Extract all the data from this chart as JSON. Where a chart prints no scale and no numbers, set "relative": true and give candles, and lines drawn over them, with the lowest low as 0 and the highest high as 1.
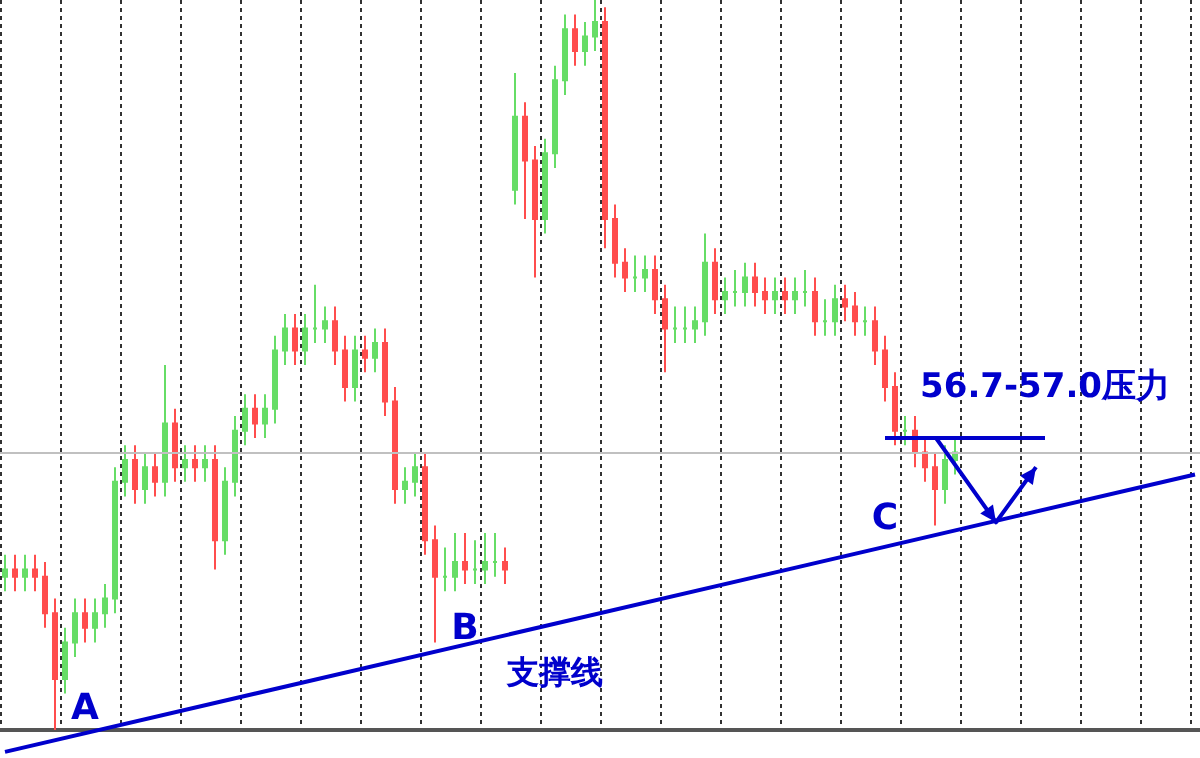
{
  "chart_data": {
    "type": "candlestick",
    "relative": true,
    "tick_labels": false,
    "grid": "x",
    "colors": [
      "#66dd66",
      "#ff4d4d",
      "#66dd66",
      "#ff4d4d",
      "#ff4d4d",
      "#ff4d4d",
      "#66dd66",
      "#66dd66",
      "#ff4d4d",
      "#66dd66",
      "#66dd66",
      "#66dd66",
      "#66dd66",
      "#ff4d4d",
      "#66dd66",
      "#ff4d4d",
      "#66dd66",
      "#ff4d4d",
      "#66dd66",
      "#ff4d4d",
      "#66dd66",
      "#ff4d4d",
      "#66dd66",
      "#66dd66",
      "#66dd66",
      "#ff4d4d",
      "#66dd66",
      "#66dd66",
      "#66dd66",
      "#ff4d4d",
      "#66dd66",
      "#66dd66",
      "#66dd66",
      "#ff4d4d",
      "#ff4d4d",
      "#66dd66",
      "#ff4d4d",
      "#66dd66",
      "#ff4d4d",
      "#ff4d4d",
      "#66dd66",
      "#66dd66",
      "#ff4d4d",
      "#ff4d4d",
      "#66dd66",
      "#66dd66",
      "#ff4d4d",
      "#66dd66",
      "#66dd66",
      "#66dd66",
      "#ff4d4d",
      "#66dd66",
      "#ff4d4d",
      "#ff4d4d",
      "#66dd66",
      "#66dd66",
      "#66dd66",
      "#ff4d4d",
      "#66dd66",
      "#66dd66",
      "#ff4d4d",
      "#ff4d4d",
      "#ff4d4d",
      "#66dd66",
      "#66dd66",
      "#ff4d4d",
      "#ff4d4d",
      "#66dd66",
      "#66dd66",
      "#66dd66",
      "#66dd66",
      "#ff4d4d",
      "#66dd66",
      "#66dd66",
      "#66dd66",
      "#ff4d4d",
      "#ff4d4d",
      "#66dd66",
      "#ff4d4d",
      "#66dd66",
      "#66dd66",
      "#ff4d4d",
      "#66dd66",
      "#66dd66",
      "#ff4d4d",
      "#ff4d4d",
      "#66dd66",
      "#ff4d4d",
      "#ff4d4d",
      "#ff4d4d",
      "#66dd66",
      "#ff4d4d",
      "#ff4d4d",
      "#ff4d4d",
      "#66dd66",
      "#66dd66",
      null,
      null,
      null,
      null,
      null,
      null,
      null,
      null,
      null,
      null,
      null,
      null,
      null,
      null,
      null,
      null,
      null,
      null,
      null,
      null,
      null,
      null,
      null,
      null
    ],
    "categories": [
      null,
      null,
      null,
      null,
      null,
      null,
      null,
      null,
      null,
      null,
      null,
      null,
      null,
      null,
      null,
      null,
      null,
      null,
      null,
      null,
      null,
      null,
      null,
      null,
      null,
      null,
      null,
      null,
      null,
      null,
      null,
      null,
      null,
      null,
      null,
      null,
      null,
      null,
      null,
      null,
      null,
      null,
      null,
      null,
      null,
      null,
      null,
      null,
      null,
      null,
      null,
      null,
      null,
      null,
      null,
      null,
      null,
      null,
      null,
      null,
      null,
      null,
      null,
      null,
      null,
      null,
      null,
      null,
      null,
      null,
      null,
      null,
      null,
      null,
      null,
      null,
      null,
      null,
      null,
      null,
      null,
      null,
      null,
      null,
      null,
      null,
      null,
      null,
      null,
      null,
      null,
      null,
      null,
      null,
      null,
      null,
      null,
      null,
      null,
      null,
      null,
      null,
      null,
      null,
      null,
      null,
      null,
      null,
      null,
      null,
      null,
      null,
      null,
      null,
      null,
      null,
      null,
      null,
      null,
      null
    ],
    "ohlc": [
      [
        0.21,
        0.24,
        0.19,
        0.22
      ],
      [
        0.22,
        0.24,
        0.19,
        0.21
      ],
      [
        0.21,
        0.24,
        0.19,
        0.22
      ],
      [
        0.22,
        0.24,
        0.19,
        0.21
      ],
      [
        0.21,
        0.23,
        0.14,
        0.16
      ],
      [
        0.16,
        0.18,
        0,
        0.07
      ],
      [
        0.07,
        0.14,
        0.05,
        0.12
      ],
      [
        0.12,
        0.18,
        0.1,
        0.16
      ],
      [
        0.16,
        0.18,
        0.12,
        0.14
      ],
      [
        0.14,
        0.18,
        0.12,
        0.16
      ],
      [
        0.16,
        0.2,
        0.14,
        0.18
      ],
      [
        0.18,
        0.36,
        0.16,
        0.34
      ],
      [
        0.34,
        0.39,
        0.32,
        0.37
      ],
      [
        0.37,
        0.39,
        0.31,
        0.33
      ],
      [
        0.33,
        0.38,
        0.31,
        0.36
      ],
      [
        0.36,
        0.38,
        0.32,
        0.34
      ],
      [
        0.34,
        0.5,
        0.32,
        0.42
      ],
      [
        0.42,
        0.44,
        0.34,
        0.36
      ],
      [
        0.36,
        0.39,
        0.34,
        0.37
      ],
      [
        0.37,
        0.39,
        0.34,
        0.36
      ],
      [
        0.36,
        0.39,
        0.34,
        0.37
      ],
      [
        0.37,
        0.39,
        0.22,
        0.26
      ],
      [
        0.26,
        0.36,
        0.24,
        0.34
      ],
      [
        0.34,
        0.43,
        0.32,
        0.41
      ],
      [
        0.41,
        0.46,
        0.39,
        0.44
      ],
      [
        0.44,
        0.46,
        0.4,
        0.42
      ],
      [
        0.42,
        0.46,
        0.4,
        0.44
      ],
      [
        0.44,
        0.54,
        0.42,
        0.52
      ],
      [
        0.52,
        0.57,
        0.5,
        0.55
      ],
      [
        0.55,
        0.57,
        0.5,
        0.52
      ],
      [
        0.52,
        0.57,
        0.5,
        0.55
      ],
      [
        0.55,
        0.61,
        0.53,
        0.55
      ],
      [
        0.55,
        0.58,
        0.53,
        0.56
      ],
      [
        0.56,
        0.58,
        0.5,
        0.52
      ],
      [
        0.52,
        0.54,
        0.45,
        0.47
      ],
      [
        0.47,
        0.54,
        0.45,
        0.52
      ],
      [
        0.52,
        0.54,
        0.49,
        0.51
      ],
      [
        0.51,
        0.55,
        0.49,
        0.53
      ],
      [
        0.53,
        0.55,
        0.43,
        0.45
      ],
      [
        0.45,
        0.47,
        0.31,
        0.33
      ],
      [
        0.33,
        0.36,
        0.31,
        0.34
      ],
      [
        0.34,
        0.38,
        0.32,
        0.36
      ],
      [
        0.36,
        0.38,
        0.24,
        0.26
      ],
      [
        0.26,
        0.28,
        0.12,
        0.21
      ],
      [
        0.21,
        0.25,
        0.19,
        0.21
      ],
      [
        0.21,
        0.27,
        0.19,
        0.23
      ],
      [
        0.23,
        0.27,
        0.2,
        0.22
      ],
      [
        0.22,
        0.26,
        0.2,
        0.22
      ],
      [
        0.22,
        0.27,
        0.2,
        0.23
      ],
      [
        0.23,
        0.27,
        0.21,
        0.23
      ],
      [
        0.23,
        0.25,
        0.2,
        0.22
      ],
      [
        0.74,
        0.9,
        0.72,
        0.84
      ],
      [
        0.84,
        0.86,
        0.7,
        0.78
      ],
      [
        0.78,
        0.8,
        0.62,
        0.7
      ],
      [
        0.7,
        0.81,
        0.68,
        0.79
      ],
      [
        0.79,
        0.91,
        0.77,
        0.89
      ],
      [
        0.89,
        0.98,
        0.87,
        0.96
      ],
      [
        0.96,
        0.98,
        0.91,
        0.93
      ],
      [
        0.93,
        0.97,
        0.91,
        0.95
      ],
      [
        0.95,
        1,
        0.93,
        0.97
      ],
      [
        0.97,
        0.99,
        0.66,
        0.7
      ],
      [
        0.7,
        0.72,
        0.62,
        0.64
      ],
      [
        0.64,
        0.66,
        0.6,
        0.62
      ],
      [
        0.62,
        0.65,
        0.6,
        0.62
      ],
      [
        0.62,
        0.65,
        0.6,
        0.63
      ],
      [
        0.63,
        0.65,
        0.57,
        0.59
      ],
      [
        0.59,
        0.61,
        0.49,
        0.55
      ],
      [
        0.55,
        0.58,
        0.53,
        0.55
      ],
      [
        0.55,
        0.58,
        0.53,
        0.55
      ],
      [
        0.55,
        0.58,
        0.53,
        0.56
      ],
      [
        0.56,
        0.68,
        0.54,
        0.64
      ],
      [
        0.64,
        0.66,
        0.57,
        0.59
      ],
      [
        0.59,
        0.62,
        0.57,
        0.6
      ],
      [
        0.6,
        0.63,
        0.58,
        0.6
      ],
      [
        0.6,
        0.64,
        0.58,
        0.62
      ],
      [
        0.62,
        0.64,
        0.58,
        0.6
      ],
      [
        0.6,
        0.62,
        0.57,
        0.59
      ],
      [
        0.59,
        0.62,
        0.57,
        0.6
      ],
      [
        0.6,
        0.62,
        0.57,
        0.59
      ],
      [
        0.59,
        0.62,
        0.57,
        0.6
      ],
      [
        0.6,
        0.63,
        0.58,
        0.6
      ],
      [
        0.6,
        0.62,
        0.54,
        0.56
      ],
      [
        0.56,
        0.59,
        0.54,
        0.56
      ],
      [
        0.56,
        0.61,
        0.54,
        0.59
      ],
      [
        0.59,
        0.61,
        0.56,
        0.58
      ],
      [
        0.58,
        0.6,
        0.54,
        0.56
      ],
      [
        0.56,
        0.58,
        0.54,
        0.56
      ],
      [
        0.56,
        0.58,
        0.5,
        0.52
      ],
      [
        0.52,
        0.54,
        0.45,
        0.47
      ],
      [
        0.47,
        0.49,
        0.39,
        0.41
      ],
      [
        0.41,
        0.43,
        0.39,
        0.41
      ],
      [
        0.41,
        0.43,
        0.36,
        0.38
      ],
      [
        0.38,
        0.4,
        0.34,
        0.36
      ],
      [
        0.36,
        0.38,
        0.28,
        0.33
      ],
      [
        0.33,
        0.39,
        0.31,
        0.37
      ],
      [
        0.37,
        0.4,
        0.35,
        0.38
      ],
      null,
      null,
      null,
      null,
      null,
      null,
      null,
      null,
      null,
      null,
      null,
      null,
      null,
      null,
      null,
      null,
      null,
      null,
      null,
      null,
      null,
      null,
      null,
      null
    ],
    "series": [
      {
        "type": "line",
        "color": "#0000cc",
        "values": [
          -0.03,
          null,
          null,
          null,
          null,
          null,
          null,
          null,
          null,
          null,
          null,
          null,
          null,
          null,
          null,
          null,
          null,
          null,
          null,
          null,
          null,
          null,
          null,
          null,
          null,
          null,
          null,
          null,
          null,
          null,
          null,
          null,
          null,
          null,
          null,
          null,
          null,
          null,
          null,
          null,
          null,
          null,
          null,
          null,
          null,
          null,
          null,
          null,
          null,
          null,
          null,
          null,
          null,
          null,
          null,
          null,
          null,
          null,
          null,
          null,
          null,
          null,
          null,
          null,
          null,
          null,
          null,
          null,
          null,
          null,
          null,
          null,
          null,
          null,
          null,
          null,
          null,
          null,
          null,
          null,
          null,
          null,
          null,
          null,
          null,
          null,
          null,
          null,
          null,
          null,
          null,
          null,
          null,
          null,
          null,
          null,
          null,
          null,
          null,
          null,
          null,
          null,
          null,
          null,
          null,
          null,
          null,
          null,
          null,
          null,
          null,
          null,
          null,
          null,
          null,
          null,
          null,
          null,
          null,
          0.35
        ]
      },
      {
        "type": "line",
        "color": "#0000cc",
        "values": [
          null,
          null,
          null,
          null,
          null,
          null,
          null,
          null,
          null,
          null,
          null,
          null,
          null,
          null,
          null,
          null,
          null,
          null,
          null,
          null,
          null,
          null,
          null,
          null,
          null,
          null,
          null,
          null,
          null,
          null,
          null,
          null,
          null,
          null,
          null,
          null,
          null,
          null,
          null,
          null,
          null,
          null,
          null,
          null,
          null,
          null,
          null,
          null,
          null,
          null,
          null,
          null,
          null,
          null,
          null,
          null,
          null,
          null,
          null,
          null,
          null,
          null,
          null,
          null,
          null,
          null,
          null,
          null,
          null,
          null,
          null,
          null,
          null,
          null,
          null,
          null,
          null,
          null,
          null,
          null,
          null,
          null,
          null,
          null,
          null,
          null,
          null,
          null,
          0.4,
          null,
          null,
          null,
          null,
          null,
          null,
          null,
          null,
          null,
          null,
          null,
          null,
          null,
          null,
          null,
          0.4,
          null,
          null,
          null,
          null,
          null,
          null,
          null,
          null,
          null,
          null,
          null,
          null,
          null,
          null,
          null
        ]
      }
    ],
    "ref_lines": [
      {
        "axis": "y",
        "value": 0.38,
        "color": "#c0c0c0"
      }
    ],
    "annotations": [
      "A",
      "B",
      "C",
      "支撑线",
      "56.7-57.0压力"
    ]
  }
}
